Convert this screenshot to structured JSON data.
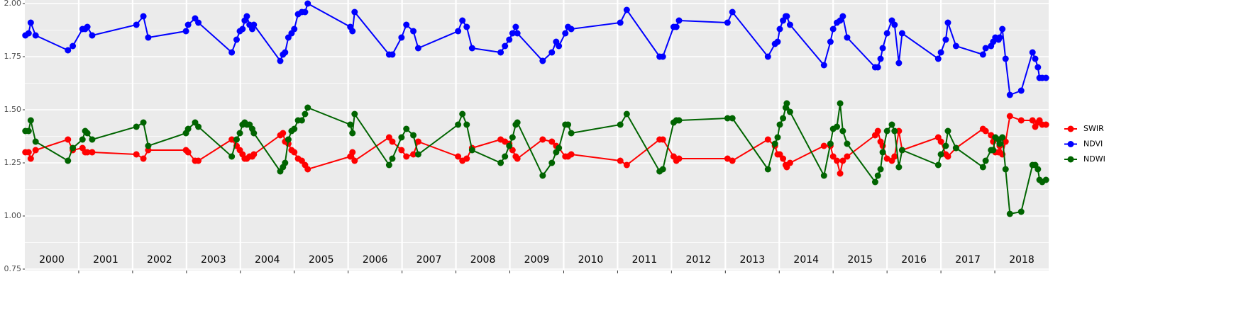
{
  "chart_data": {
    "type": "line",
    "x": [
      2000.01,
      2000.07,
      2000.11,
      2000.2,
      2000.8,
      2000.89,
      2001.07,
      2001.12,
      2001.16,
      2001.25,
      2002.07,
      2002.2,
      2002.29,
      2002.99,
      2003.03,
      2003.16,
      2003.22,
      2003.84,
      2003.93,
      2003.99,
      2004.04,
      2004.08,
      2004.12,
      2004.17,
      2004.22,
      2004.25,
      2004.74,
      2004.79,
      2004.83,
      2004.89,
      2004.95,
      2005.0,
      2005.07,
      2005.14,
      2005.2,
      2005.25,
      2006.04,
      2006.08,
      2006.12,
      2006.76,
      2006.82,
      2006.99,
      2007.08,
      2007.21,
      2007.3,
      2008.04,
      2008.12,
      2008.2,
      2008.3,
      2008.83,
      2008.91,
      2008.99,
      2009.05,
      2009.11,
      2009.14,
      2009.61,
      2009.78,
      2009.86,
      2009.91,
      2010.03,
      2010.08,
      2010.14,
      2011.05,
      2011.17,
      2011.78,
      2011.84,
      2012.04,
      2012.09,
      2012.14,
      2013.04,
      2013.13,
      2013.79,
      2013.92,
      2013.97,
      2014.01,
      2014.07,
      2014.12,
      2014.14,
      2014.2,
      2014.83,
      2014.95,
      2015.0,
      2015.07,
      2015.13,
      2015.18,
      2015.26,
      2015.78,
      2015.83,
      2015.88,
      2015.92,
      2016.0,
      2016.09,
      2016.14,
      2016.22,
      2016.28,
      2016.95,
      2017.0,
      2017.09,
      2017.13,
      2017.28,
      2017.78,
      2017.83,
      2017.93,
      2017.97,
      2018.01,
      2018.07,
      2018.09,
      2018.14,
      2018.2,
      2018.28,
      2018.49,
      2018.7,
      2018.75,
      2018.8,
      2018.83,
      2018.88,
      2018.95
    ],
    "series": [
      {
        "name": "SWIR",
        "color": "#ff0000",
        "values": [
          1.3,
          1.3,
          1.27,
          1.31,
          1.36,
          1.31,
          1.32,
          1.3,
          1.3,
          1.3,
          1.29,
          1.27,
          1.31,
          1.31,
          1.3,
          1.26,
          1.26,
          1.36,
          1.33,
          1.31,
          1.29,
          1.27,
          1.27,
          1.28,
          1.28,
          1.29,
          1.38,
          1.39,
          1.35,
          1.34,
          1.31,
          1.3,
          1.27,
          1.26,
          1.24,
          1.22,
          1.28,
          1.3,
          1.26,
          1.37,
          1.35,
          1.31,
          1.28,
          1.29,
          1.35,
          1.28,
          1.26,
          1.27,
          1.32,
          1.36,
          1.35,
          1.34,
          1.31,
          1.28,
          1.27,
          1.36,
          1.35,
          1.33,
          1.32,
          1.28,
          1.28,
          1.29,
          1.26,
          1.24,
          1.36,
          1.36,
          1.28,
          1.26,
          1.27,
          1.27,
          1.26,
          1.36,
          1.33,
          1.29,
          1.29,
          1.27,
          1.24,
          1.23,
          1.25,
          1.33,
          1.33,
          1.28,
          1.26,
          1.2,
          1.26,
          1.28,
          1.38,
          1.4,
          1.35,
          1.33,
          1.27,
          1.26,
          1.28,
          1.4,
          1.31,
          1.37,
          1.35,
          1.29,
          1.28,
          1.32,
          1.41,
          1.4,
          1.38,
          1.35,
          1.3,
          1.3,
          1.33,
          1.29,
          1.35,
          1.47,
          1.45,
          1.45,
          1.42,
          1.44,
          1.45,
          1.43,
          1.43
        ]
      },
      {
        "name": "NDVI",
        "color": "#0000ff",
        "values": [
          1.85,
          1.86,
          1.91,
          1.85,
          1.78,
          1.8,
          1.88,
          1.88,
          1.89,
          1.85,
          1.9,
          1.94,
          1.84,
          1.87,
          1.9,
          1.93,
          1.91,
          1.77,
          1.83,
          1.87,
          1.88,
          1.92,
          1.94,
          1.9,
          1.88,
          1.9,
          1.73,
          1.76,
          1.77,
          1.84,
          1.86,
          1.88,
          1.95,
          1.96,
          1.96,
          2.0,
          1.89,
          1.87,
          1.96,
          1.76,
          1.76,
          1.84,
          1.9,
          1.87,
          1.79,
          1.87,
          1.92,
          1.89,
          1.79,
          1.77,
          1.8,
          1.83,
          1.86,
          1.89,
          1.86,
          1.73,
          1.77,
          1.82,
          1.8,
          1.86,
          1.89,
          1.88,
          1.91,
          1.97,
          1.75,
          1.75,
          1.89,
          1.89,
          1.92,
          1.91,
          1.96,
          1.75,
          1.81,
          1.82,
          1.88,
          1.92,
          1.94,
          1.94,
          1.9,
          1.71,
          1.82,
          1.88,
          1.91,
          1.92,
          1.94,
          1.84,
          1.7,
          1.7,
          1.74,
          1.79,
          1.86,
          1.92,
          1.9,
          1.72,
          1.86,
          1.74,
          1.77,
          1.83,
          1.91,
          1.8,
          1.76,
          1.79,
          1.8,
          1.82,
          1.84,
          1.83,
          1.84,
          1.88,
          1.74,
          1.57,
          1.59,
          1.77,
          1.74,
          1.7,
          1.65,
          1.65,
          1.65
        ]
      },
      {
        "name": "NDWI",
        "color": "#006400",
        "values": [
          1.4,
          1.4,
          1.45,
          1.35,
          1.26,
          1.32,
          1.36,
          1.4,
          1.39,
          1.36,
          1.42,
          1.44,
          1.33,
          1.39,
          1.41,
          1.44,
          1.42,
          1.28,
          1.36,
          1.39,
          1.43,
          1.44,
          1.43,
          1.43,
          1.41,
          1.39,
          1.21,
          1.23,
          1.25,
          1.36,
          1.4,
          1.41,
          1.45,
          1.45,
          1.48,
          1.51,
          1.43,
          1.39,
          1.48,
          1.24,
          1.27,
          1.37,
          1.41,
          1.38,
          1.29,
          1.43,
          1.48,
          1.43,
          1.31,
          1.25,
          1.28,
          1.33,
          1.37,
          1.43,
          1.44,
          1.19,
          1.25,
          1.3,
          1.32,
          1.43,
          1.43,
          1.39,
          1.43,
          1.48,
          1.21,
          1.22,
          1.44,
          1.45,
          1.45,
          1.46,
          1.46,
          1.22,
          1.34,
          1.37,
          1.43,
          1.46,
          1.51,
          1.53,
          1.49,
          1.19,
          1.34,
          1.41,
          1.42,
          1.53,
          1.4,
          1.34,
          1.16,
          1.19,
          1.22,
          1.3,
          1.4,
          1.43,
          1.4,
          1.23,
          1.31,
          1.24,
          1.29,
          1.33,
          1.4,
          1.32,
          1.23,
          1.26,
          1.31,
          1.31,
          1.37,
          1.36,
          1.34,
          1.37,
          1.22,
          1.01,
          1.02,
          1.24,
          1.24,
          1.22,
          1.17,
          1.16,
          1.17
        ]
      }
    ],
    "year_labels": [
      "2000",
      "2001",
      "2002",
      "2003",
      "2004",
      "2005",
      "2006",
      "2007",
      "2008",
      "2009",
      "2010",
      "2011",
      "2012",
      "2013",
      "2014",
      "2015",
      "2016",
      "2017",
      "2018"
    ],
    "xlim": [
      2000,
      2019
    ],
    "xticks": [
      2001,
      2002,
      2003,
      2004,
      2005,
      2006,
      2007,
      2008,
      2009,
      2010,
      2011,
      2012,
      2013,
      2014,
      2015,
      2016,
      2017,
      2018
    ],
    "ylim": [
      0.75,
      2.0
    ],
    "yticks": [
      {
        "value": 0.75,
        "label": "0.75"
      },
      {
        "value": 1.0,
        "label": "1.00"
      },
      {
        "value": 1.25,
        "label": "1.25"
      },
      {
        "value": 1.5,
        "label": "1.50"
      },
      {
        "value": 1.75,
        "label": "1.75"
      },
      {
        "value": 2.0,
        "label": "2.00"
      }
    ],
    "grid": true
  }
}
